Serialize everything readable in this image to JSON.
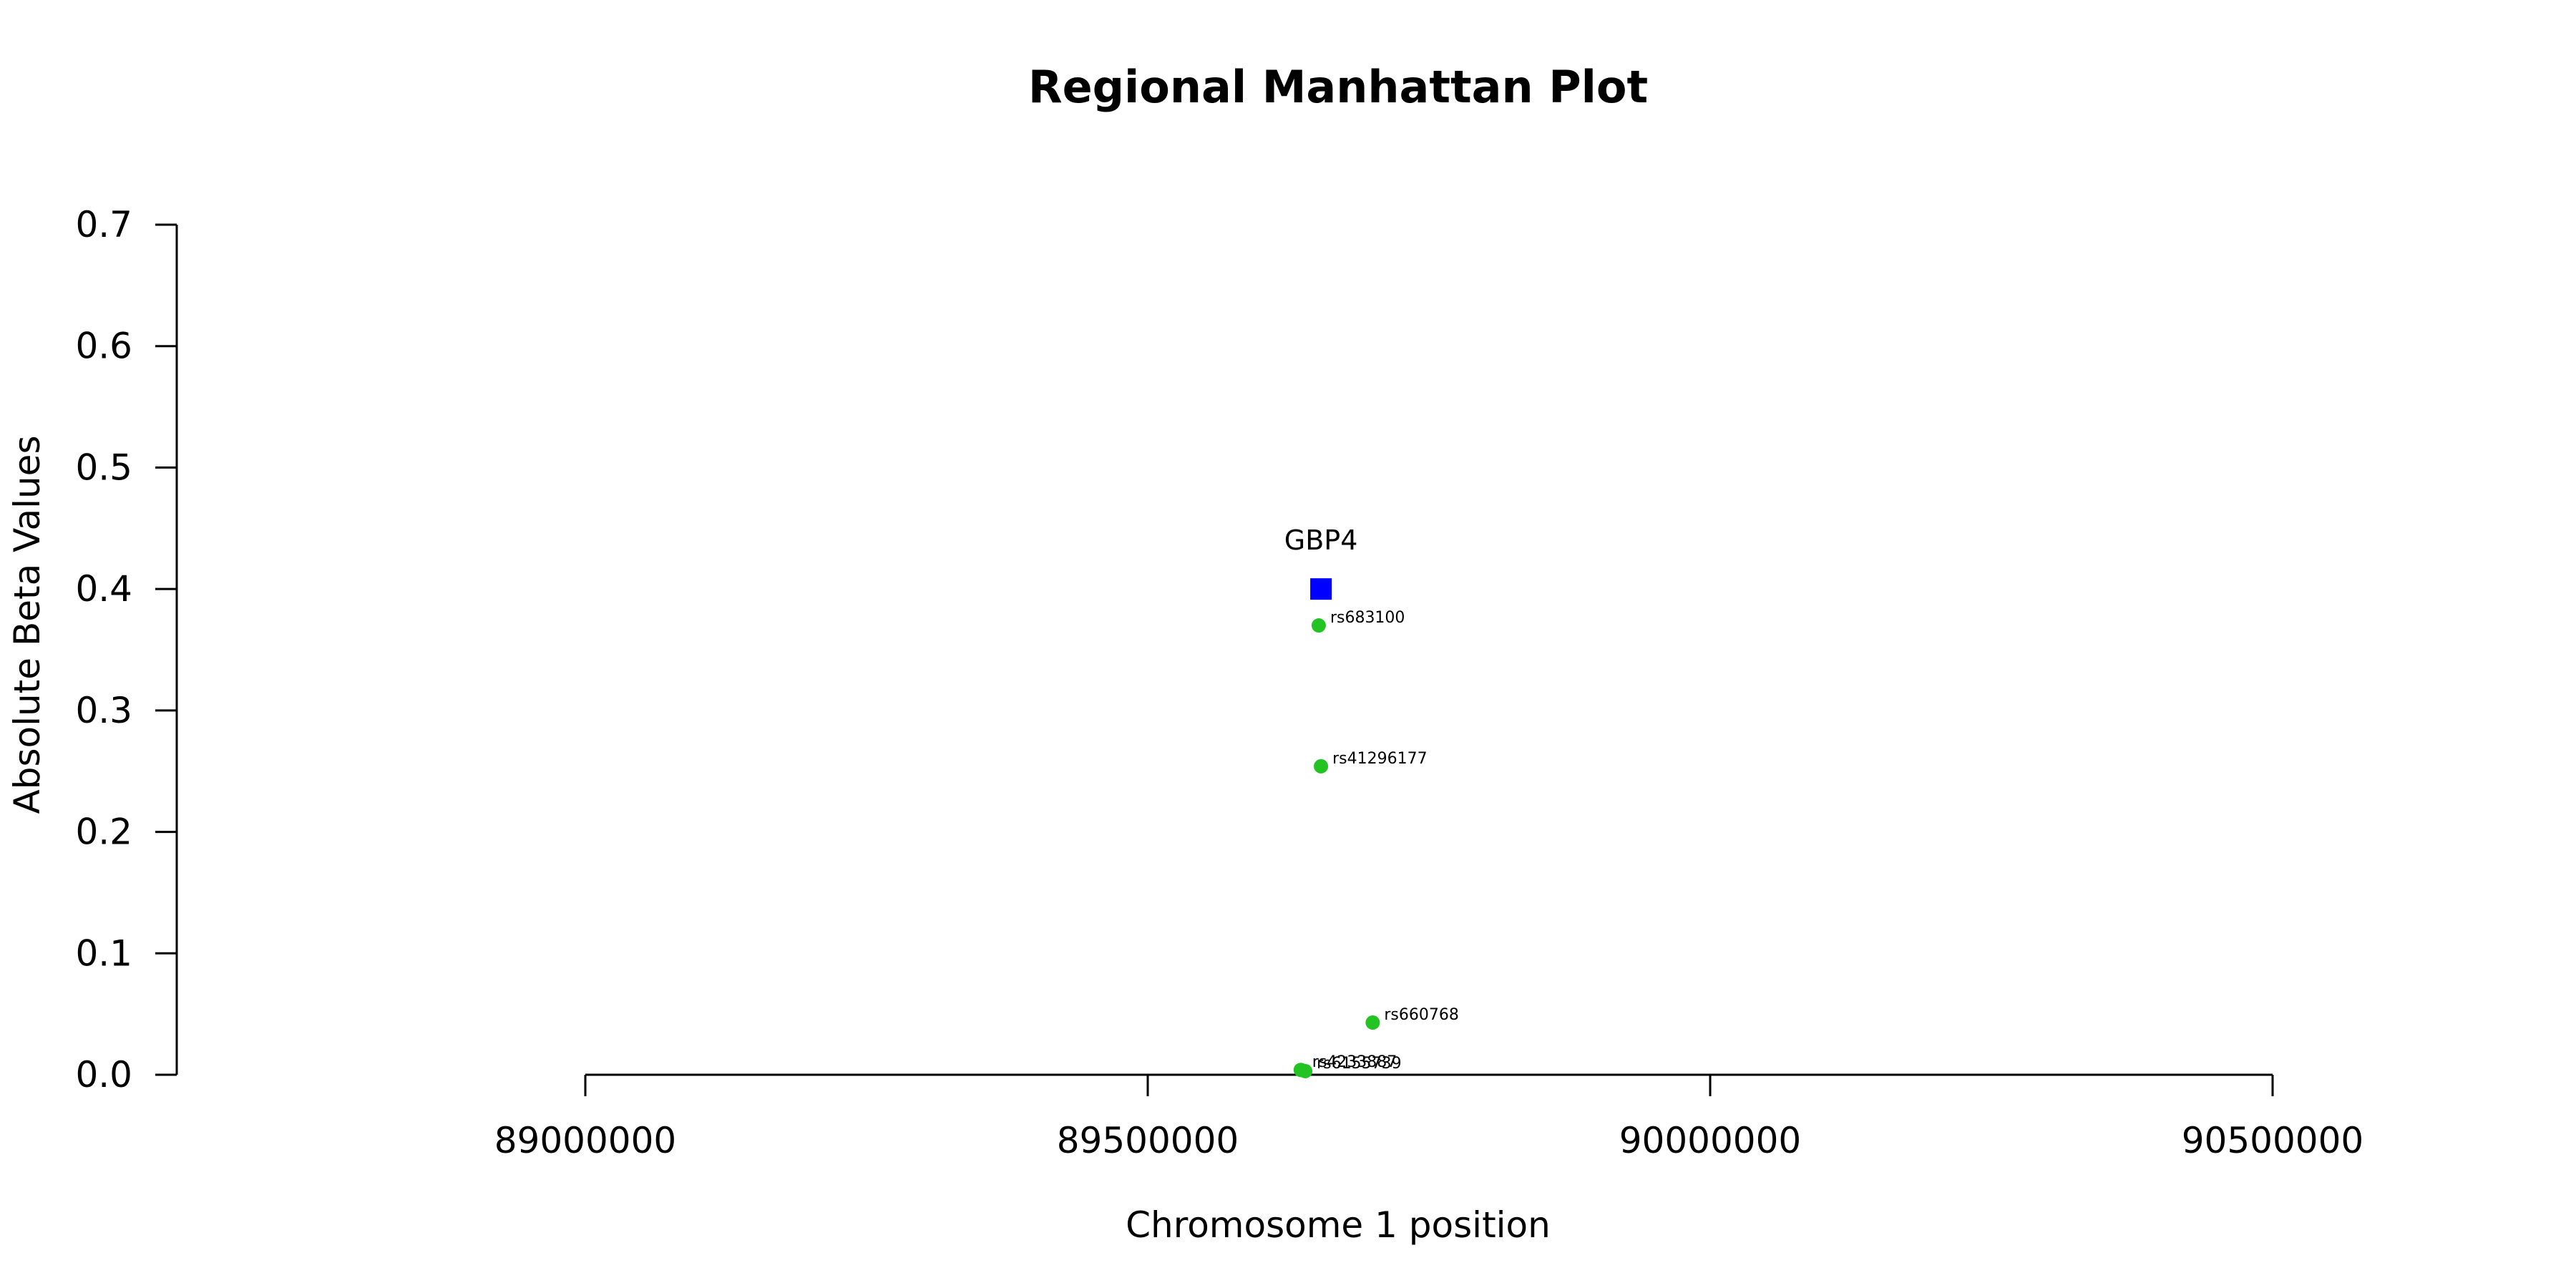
{
  "chart_data": {
    "type": "scatter",
    "title": "Regional Manhattan Plot",
    "xlabel": "Chromosome 1 position",
    "ylabel": "Absolute Beta Values",
    "xlim": [
      89000000,
      90500000
    ],
    "ylim": [
      0,
      0.7
    ],
    "x_ticks": [
      "89000000",
      "89500000",
      "90000000",
      "90500000"
    ],
    "y_ticks": [
      "0.0",
      "0.1",
      "0.2",
      "0.3",
      "0.4",
      "0.5",
      "0.6",
      "0.7"
    ],
    "grid": false,
    "snp_color": "#22c322",
    "gene_color": "#0000ff",
    "series": [
      {
        "points": [
          {
            "id": "rs683100",
            "x": 89652000,
            "y": 0.37
          },
          {
            "id": "rs41296177",
            "x": 89654000,
            "y": 0.254
          },
          {
            "id": "rs660768",
            "x": 89700000,
            "y": 0.043
          },
          {
            "id": "rs4233887",
            "x": 89636000,
            "y": 0.004
          },
          {
            "id": "rs6155739",
            "x": 89640000,
            "y": 0.003
          }
        ]
      },
      {
        "points": [
          {
            "id": "GBP4",
            "x": 89654000,
            "y": 0.4
          }
        ]
      }
    ]
  }
}
